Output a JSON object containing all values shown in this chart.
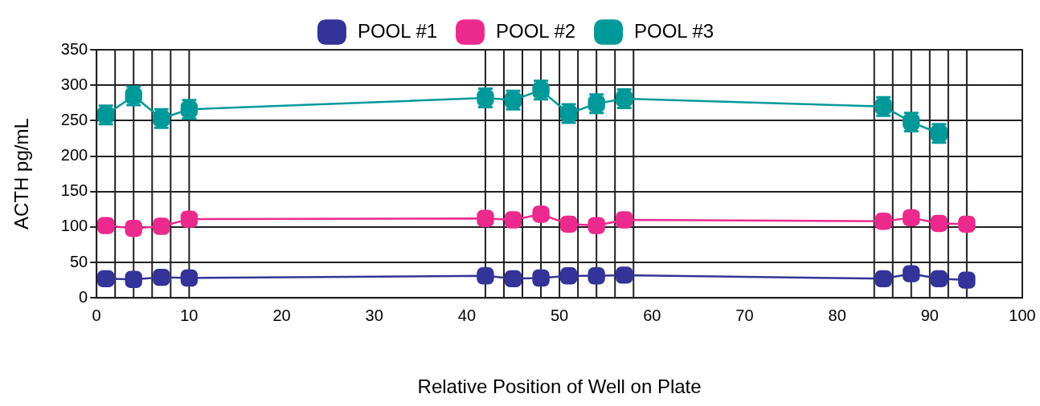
{
  "chart_data": {
    "type": "line",
    "xlabel": "Relative Position of Well on Plate",
    "ylabel": "ACTH pg/mL",
    "xlim": [
      0,
      100
    ],
    "xticks": [
      0,
      10,
      20,
      30,
      40,
      50,
      60,
      70,
      80,
      90,
      100
    ],
    "ylim": [
      0,
      350
    ],
    "yticks": [
      0,
      50,
      100,
      150,
      200,
      250,
      300,
      350
    ],
    "grid": "y",
    "legend": "top",
    "marker": "square",
    "ref_lines": [
      {
        "axis": "x",
        "value": 2,
        "color": "#231f20"
      },
      {
        "axis": "x",
        "value": 4,
        "color": "#231f20"
      },
      {
        "axis": "x",
        "value": 6,
        "color": "#231f20"
      },
      {
        "axis": "x",
        "value": 8,
        "color": "#231f20"
      },
      {
        "axis": "x",
        "value": 10,
        "color": "#231f20"
      },
      {
        "axis": "x",
        "value": 42,
        "color": "#231f20"
      },
      {
        "axis": "x",
        "value": 44,
        "color": "#231f20"
      },
      {
        "axis": "x",
        "value": 46,
        "color": "#231f20"
      },
      {
        "axis": "x",
        "value": 48,
        "color": "#231f20"
      },
      {
        "axis": "x",
        "value": 50,
        "color": "#231f20"
      },
      {
        "axis": "x",
        "value": 52,
        "color": "#231f20"
      },
      {
        "axis": "x",
        "value": 54,
        "color": "#231f20"
      },
      {
        "axis": "x",
        "value": 56,
        "color": "#231f20"
      },
      {
        "axis": "x",
        "value": 58,
        "color": "#231f20"
      },
      {
        "axis": "x",
        "value": 84,
        "color": "#231f20"
      },
      {
        "axis": "x",
        "value": 86,
        "color": "#231f20"
      },
      {
        "axis": "x",
        "value": 88,
        "color": "#231f20"
      },
      {
        "axis": "x",
        "value": 90,
        "color": "#231f20"
      },
      {
        "axis": "x",
        "value": 92,
        "color": "#231f20"
      },
      {
        "axis": "x",
        "value": 94,
        "color": "#231f20"
      }
    ],
    "series": [
      {
        "name": "POOL #1",
        "color": "#333399",
        "x": [
          1,
          4,
          7,
          10,
          42,
          45,
          48,
          51,
          54,
          57,
          85,
          88,
          91,
          94
        ],
        "values": [
          27,
          26,
          29,
          28,
          31,
          27,
          28,
          31,
          31,
          32,
          27,
          34,
          27,
          25
        ]
      },
      {
        "name": "POOL #2",
        "color": "#ec2a8e",
        "x": [
          1,
          4,
          7,
          10,
          42,
          45,
          48,
          51,
          54,
          57,
          85,
          88,
          91,
          94
        ],
        "values": [
          102,
          98,
          101,
          111,
          112,
          110,
          118,
          104,
          102,
          110,
          108,
          113,
          105,
          104
        ]
      },
      {
        "name": "POOL #3",
        "color": "#00999a",
        "x": [
          1,
          4,
          7,
          10,
          42,
          45,
          48,
          51,
          54,
          57,
          85,
          88,
          91
        ],
        "values": [
          258,
          285,
          253,
          266,
          282,
          279,
          293,
          260,
          274,
          281,
          270,
          248,
          232
        ],
        "errors": [
          13,
          13,
          13,
          13,
          13,
          13,
          13,
          13,
          13,
          13,
          13,
          13,
          13
        ]
      }
    ]
  }
}
